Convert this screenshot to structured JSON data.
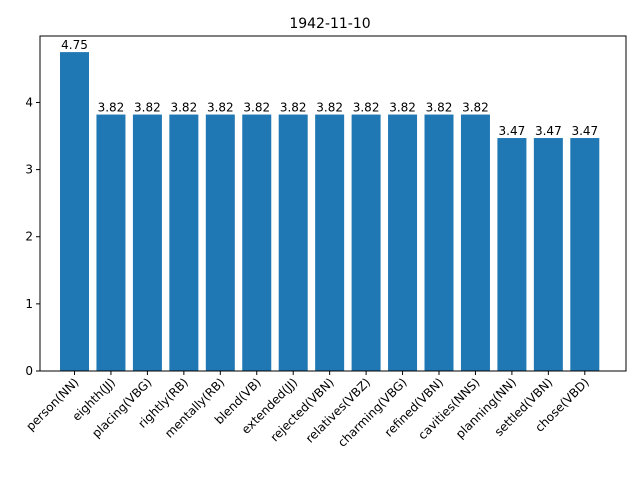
{
  "chart_data": {
    "type": "bar",
    "title": "1942-11-10",
    "xlabel": "",
    "ylabel": "",
    "categories": [
      "person(NN)",
      "eighth(JJ)",
      "placing(VBG)",
      "rightly(RB)",
      "mentally(RB)",
      "blend(VB)",
      "extended(JJ)",
      "rejected(VBN)",
      "relatives(VBZ)",
      "charming(VBG)",
      "refined(VBN)",
      "cavities(NNS)",
      "planning(NN)",
      "settled(VBN)",
      "chose(VBD)"
    ],
    "values": [
      4.75,
      3.82,
      3.82,
      3.82,
      3.82,
      3.82,
      3.82,
      3.82,
      3.82,
      3.82,
      3.82,
      3.82,
      3.47,
      3.47,
      3.47
    ],
    "value_labels": [
      "4.75",
      "3.82",
      "3.82",
      "3.82",
      "3.82",
      "3.82",
      "3.82",
      "3.82",
      "3.82",
      "3.82",
      "3.82",
      "3.82",
      "3.47",
      "3.47",
      "3.47"
    ],
    "ylim": [
      0,
      4.99
    ],
    "yticks": [
      0,
      1,
      2,
      3,
      4
    ],
    "ytick_labels": [
      "0",
      "1",
      "2",
      "3",
      "4"
    ],
    "grid": false,
    "bar_color": "#1f77b4"
  }
}
